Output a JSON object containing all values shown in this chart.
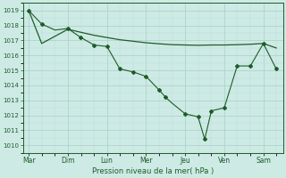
{
  "background_color": "#cdeae5",
  "grid_color_major": "#a8cfc8",
  "grid_color_minor": "#bdddd8",
  "line_color": "#1e5c28",
  "xlabel": "Pression niveau de la mer( hPa )",
  "ylim": [
    1009.5,
    1019.5
  ],
  "yticks": [
    1010,
    1011,
    1012,
    1013,
    1014,
    1015,
    1016,
    1017,
    1018,
    1019
  ],
  "xtick_labels": [
    "Mar",
    "Dim",
    "Lun",
    "Mer",
    "Jeu",
    "Ven",
    "Sam"
  ],
  "xtick_positions": [
    0,
    1,
    2,
    3,
    4,
    5,
    6
  ],
  "xlim": [
    -0.15,
    6.5
  ],
  "line1_x": [
    0.0,
    0.33,
    0.67,
    1.0,
    1.33,
    1.67,
    2.0,
    2.33,
    2.67,
    3.0,
    3.33,
    3.5,
    3.67,
    4.0,
    4.33,
    4.5,
    4.67,
    5.0,
    5.33,
    5.67,
    6.0,
    6.33
  ],
  "line1_y": [
    1019.0,
    1018.1,
    1017.7,
    1017.8,
    1017.2,
    1016.7,
    1016.6,
    1015.1,
    1014.9,
    1014.6,
    1013.7,
    1013.2,
    1012.8,
    1012.1,
    1011.9,
    1010.4,
    1012.3,
    1012.5,
    1015.3,
    1015.3,
    1016.8,
    1015.1
  ],
  "line1_markers_x": [
    0.0,
    0.33,
    1.0,
    1.33,
    1.67,
    2.0,
    2.33,
    2.67,
    3.0,
    3.33,
    3.5,
    4.0,
    4.33,
    4.5,
    4.67,
    5.0,
    5.33,
    5.67,
    6.0,
    6.33
  ],
  "line1_markers_y": [
    1019.0,
    1018.1,
    1017.8,
    1017.2,
    1016.7,
    1016.6,
    1015.1,
    1014.9,
    1014.6,
    1013.7,
    1013.2,
    1012.1,
    1011.9,
    1010.4,
    1012.3,
    1012.5,
    1015.3,
    1015.3,
    1016.8,
    1015.1
  ],
  "line2_x": [
    0.0,
    0.33,
    1.0,
    1.33,
    1.67,
    2.0,
    2.33,
    2.67,
    3.0,
    3.33,
    3.67,
    4.0,
    4.33,
    4.67,
    5.0,
    5.33,
    5.67,
    6.0,
    6.33
  ],
  "line2_y": [
    1019.0,
    1016.8,
    1017.75,
    1017.55,
    1017.35,
    1017.2,
    1017.05,
    1016.95,
    1016.85,
    1016.78,
    1016.72,
    1016.7,
    1016.68,
    1016.7,
    1016.7,
    1016.72,
    1016.75,
    1016.8,
    1016.5
  ],
  "figsize": [
    3.2,
    2.0
  ],
  "dpi": 100
}
